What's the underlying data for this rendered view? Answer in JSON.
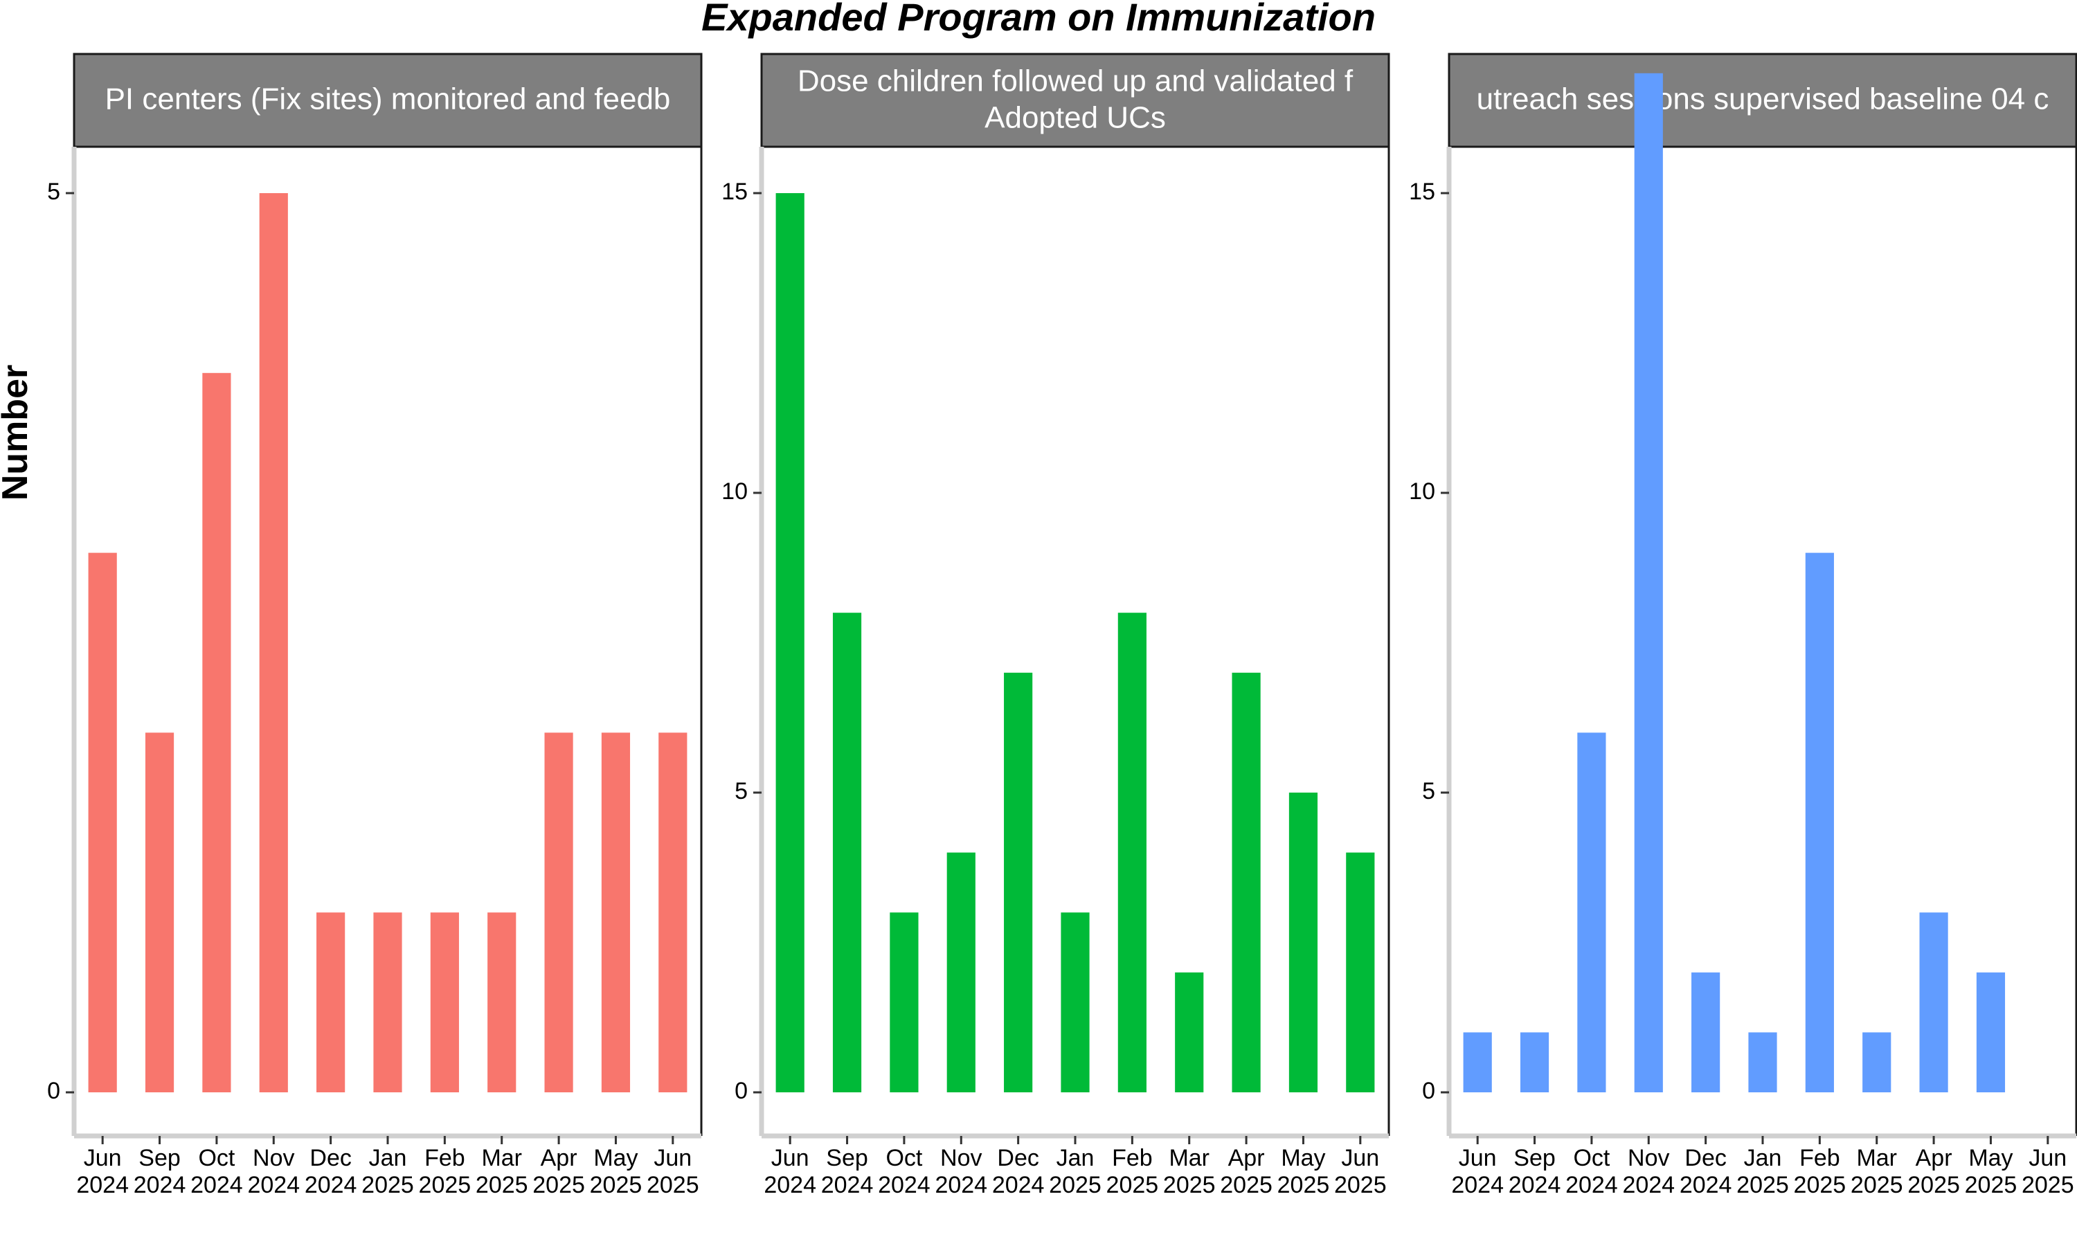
{
  "chart_data": {
    "type": "bar",
    "title": "Expanded Program on Immunization",
    "ylabel": "Number",
    "xlabel": "",
    "grid": false,
    "legend": "none",
    "categories": [
      "Jun 2024",
      "Sep 2024",
      "Oct 2024",
      "Nov 2024",
      "Dec 2024",
      "Jan 2025",
      "Feb 2025",
      "Mar 2025",
      "Apr 2025",
      "May 2025",
      "Jun 2025"
    ],
    "panels": [
      {
        "strip_lines": [
          "PI centers (Fix sites) monitored and feedb"
        ],
        "color": "#F8766D",
        "ylim": [
          0,
          5.5
        ],
        "yticks": [
          0,
          5
        ],
        "values": [
          3,
          2,
          4,
          5,
          1,
          1,
          1,
          1,
          2,
          2,
          2
        ]
      },
      {
        "strip_lines": [
          "Dose children followed up and validated f",
          "Adopted UCs"
        ],
        "color": "#00BA38",
        "ylim": [
          0,
          15.8
        ],
        "yticks": [
          0,
          5,
          10,
          15
        ],
        "values": [
          15,
          8,
          3,
          4,
          7,
          3,
          8,
          2,
          7,
          5,
          4
        ]
      },
      {
        "strip_lines": [
          "utreach sessions supervised baseline 04 c"
        ],
        "color": "#619CFF",
        "ylim": [
          0,
          18.0
        ],
        "yticks": [
          0,
          5,
          10,
          15
        ],
        "values": [
          1,
          1,
          6,
          17,
          2,
          1,
          9,
          1,
          3,
          2,
          0
        ]
      }
    ]
  }
}
